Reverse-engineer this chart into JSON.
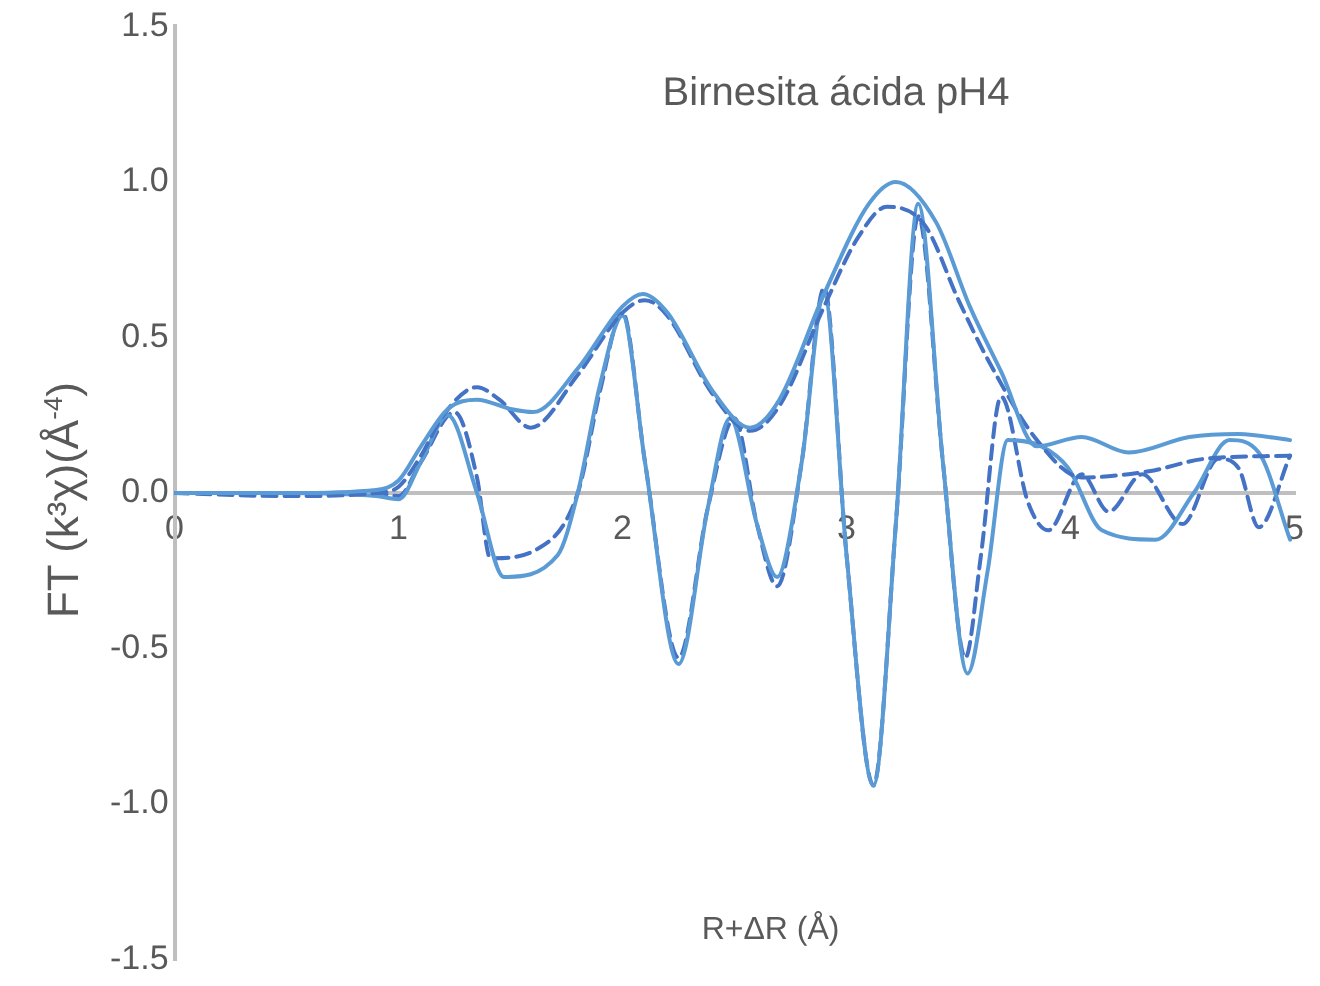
{
  "chart_data": {
    "type": "line",
    "title": "Birnesita ácida pH4",
    "xlabel": "R+ΔR (Å)",
    "ylabel": "FT (k³χ)(Å$^{-4}$)",
    "xlim": [
      0,
      5
    ],
    "xticks": [
      0,
      1,
      2,
      3,
      4,
      5
    ],
    "ylim": [
      -1.5,
      1.5
    ],
    "yticks": [
      {
        "value": -1.5,
        "label": "-1.5"
      },
      {
        "value": -1,
        "label": "-1.0"
      },
      {
        "value": -0.5,
        "label": "-0.5"
      },
      {
        "value": 0,
        "label": "0.0"
      },
      {
        "value": 0.5,
        "label": "0.5"
      },
      {
        "value": 1,
        "label": "1.0"
      },
      {
        "value": 1.5,
        "label": "1.5"
      }
    ],
    "grid": false,
    "legend": false,
    "marker": "none",
    "series": [
      {
        "color": "#5b9bd5",
        "line_style": "solid",
        "x": [
          0,
          0.5,
          0.9,
          1.0,
          1.1,
          1.22,
          1.35,
          1.5,
          1.6,
          1.8,
          2.0,
          2.09,
          2.2,
          2.4,
          2.57,
          2.7,
          2.9,
          3.1,
          3.22,
          3.4,
          3.55,
          3.69,
          3.85,
          4.05,
          4.26,
          4.53,
          4.75,
          4.98
        ],
        "values": [
          0,
          0,
          0.01,
          0.04,
          0.15,
          0.27,
          0.3,
          0.27,
          0.26,
          0.4,
          0.6,
          0.64,
          0.58,
          0.33,
          0.21,
          0.3,
          0.64,
          0.93,
          1.0,
          0.87,
          0.6,
          0.39,
          0.15,
          0.18,
          0.13,
          0.18,
          0.19,
          0.17
        ]
      },
      {
        "color": "#4472c4",
        "line_style": "dashed",
        "x": [
          0,
          0.5,
          0.9,
          1.0,
          1.1,
          1.2,
          1.35,
          1.45,
          1.59,
          1.8,
          2.0,
          2.1,
          2.2,
          2.4,
          2.57,
          2.7,
          2.9,
          3.05,
          3.18,
          3.35,
          3.5,
          3.63,
          3.85,
          4.05,
          4.35,
          4.6,
          4.98
        ],
        "values": [
          0,
          -0.01,
          0,
          0.02,
          0.12,
          0.25,
          0.34,
          0.3,
          0.21,
          0.38,
          0.58,
          0.62,
          0.57,
          0.32,
          0.2,
          0.28,
          0.6,
          0.82,
          0.92,
          0.86,
          0.62,
          0.43,
          0.17,
          0.05,
          0.07,
          0.11,
          0.12
        ]
      },
      {
        "color": "#5b9bd5",
        "line_style": "solid",
        "x": [
          0,
          0.5,
          0.9,
          1.0,
          1.1,
          1.22,
          1.35,
          1.47,
          1.71,
          1.8,
          1.9,
          2.0,
          2.1,
          2.25,
          2.38,
          2.48,
          2.6,
          2.69,
          2.8,
          2.9,
          3.0,
          3.12,
          3.22,
          3.32,
          3.43,
          3.54,
          3.63,
          3.72,
          3.87,
          3.99,
          4.14,
          4.38,
          4.55,
          4.71,
          4.84,
          4.98
        ],
        "values": [
          0,
          0,
          -0.01,
          -0.02,
          0.1,
          0.25,
          0.0,
          -0.27,
          -0.2,
          0,
          0.35,
          0.57,
          0.1,
          -0.55,
          -0.05,
          0.24,
          -0.1,
          -0.27,
          0.1,
          0.64,
          -0.2,
          -0.94,
          -0.1,
          0.93,
          0.1,
          -0.58,
          -0.25,
          0.17,
          0.15,
          0.08,
          -0.12,
          -0.15,
          0.0,
          0.17,
          0.13,
          -0.15
        ]
      },
      {
        "color": "#4472c4",
        "line_style": "dashed",
        "x": [
          0,
          0.5,
          0.9,
          1.0,
          1.1,
          1.25,
          1.35,
          1.41,
          1.62,
          1.8,
          1.9,
          2.0,
          2.1,
          2.25,
          2.38,
          2.5,
          2.6,
          2.69,
          2.8,
          2.9,
          3.0,
          3.12,
          3.22,
          3.32,
          3.43,
          3.53,
          3.6,
          3.69,
          3.81,
          3.9,
          4.05,
          4.17,
          4.32,
          4.5,
          4.66,
          4.75,
          4.84,
          4.98
        ],
        "values": [
          0,
          0,
          0,
          -0.01,
          0.1,
          0.26,
          0.05,
          -0.21,
          -0.18,
          0,
          0.33,
          0.58,
          0.1,
          -0.53,
          -0.05,
          0.24,
          -0.1,
          -0.3,
          0.1,
          0.66,
          -0.2,
          -0.94,
          -0.1,
          0.89,
          0.1,
          -0.53,
          -0.2,
          0.31,
          -0.03,
          -0.12,
          0.06,
          -0.06,
          0.06,
          -0.1,
          0.11,
          0.08,
          -0.11,
          0.12
        ]
      }
    ]
  }
}
